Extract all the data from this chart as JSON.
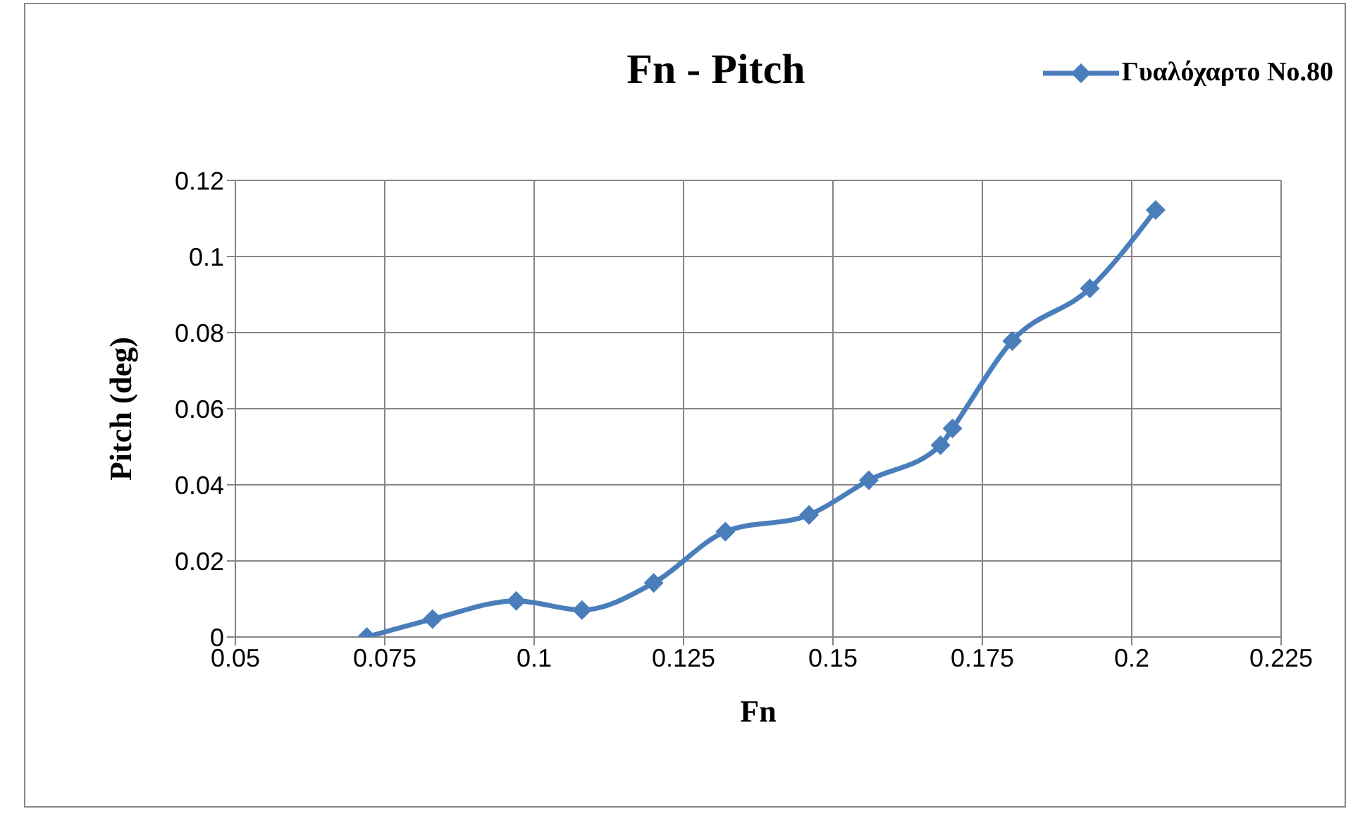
{
  "chart_data": {
    "type": "line",
    "title": "Fn - Pitch",
    "xlabel": "Fn",
    "ylabel": "Pitch (deg)",
    "x": [
      0.072,
      0.083,
      0.097,
      0.108,
      0.12,
      0.132,
      0.146,
      0.156,
      0.168,
      0.17,
      0.18,
      0.193,
      0.204
    ],
    "series": [
      {
        "name": "Γυαλόχαρτο No.80",
        "color": "#4a7ebb",
        "values": [
          0,
          0.0047,
          0.0095,
          0.0071,
          0.0142,
          0.0277,
          0.0321,
          0.0412,
          0.0504,
          0.0548,
          0.0778,
          0.0916,
          0.1122
        ]
      }
    ],
    "xlim": [
      0.05,
      0.225
    ],
    "xticks": [
      0.05,
      0.075,
      0.1,
      0.125,
      0.15,
      0.175,
      0.2,
      0.225
    ],
    "ylim": [
      0,
      0.12
    ],
    "yticks": [
      0,
      0.02,
      0.04,
      0.06,
      0.08,
      0.1,
      0.12
    ],
    "grid": true,
    "legend": "top right",
    "marker": "diamond",
    "line_style": "solid"
  }
}
